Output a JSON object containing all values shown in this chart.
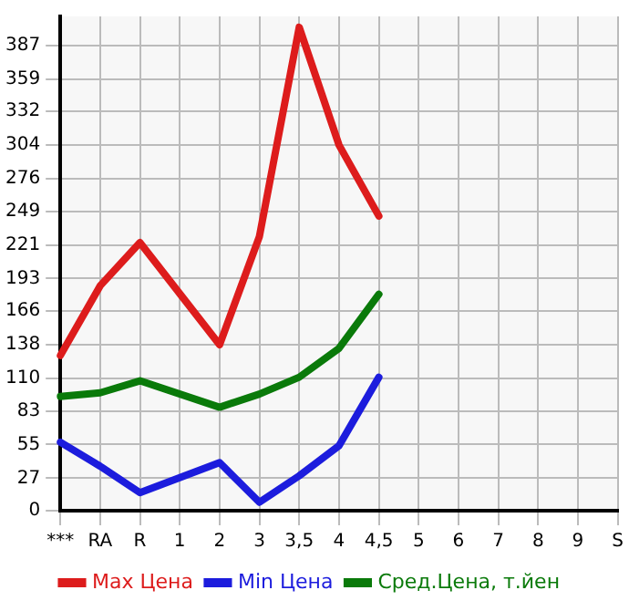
{
  "chart_data": {
    "type": "line",
    "categories": [
      "***",
      "RA",
      "R",
      "1",
      "2",
      "3",
      "3,5",
      "4",
      "4,5",
      "5",
      "6",
      "7",
      "8",
      "9",
      "S"
    ],
    "series": [
      {
        "name": "Max Цена",
        "color": "#dd1c1c",
        "values": [
          129,
          187,
          223,
          null,
          138,
          228,
          402,
          304,
          245,
          null,
          null,
          null,
          null,
          null,
          null
        ]
      },
      {
        "name": "Min Цена",
        "color": "#1c1cdd",
        "values": [
          57,
          37,
          15,
          null,
          40,
          7,
          29,
          54,
          111,
          null,
          null,
          null,
          null,
          null,
          null
        ]
      },
      {
        "name": "Сред.Цена, т.йен",
        "color": "#0a7a0a",
        "values": [
          95,
          98,
          108,
          null,
          86,
          97,
          111,
          135,
          180,
          null,
          null,
          null,
          null,
          null,
          null
        ]
      }
    ],
    "ylim": [
      0,
      411
    ],
    "yticks": [
      0,
      27,
      55,
      83,
      110,
      138,
      166,
      193,
      221,
      249,
      276,
      304,
      332,
      359,
      387
    ],
    "grid": true,
    "legend": "bottom",
    "marker": "none",
    "line_style": "solid"
  }
}
